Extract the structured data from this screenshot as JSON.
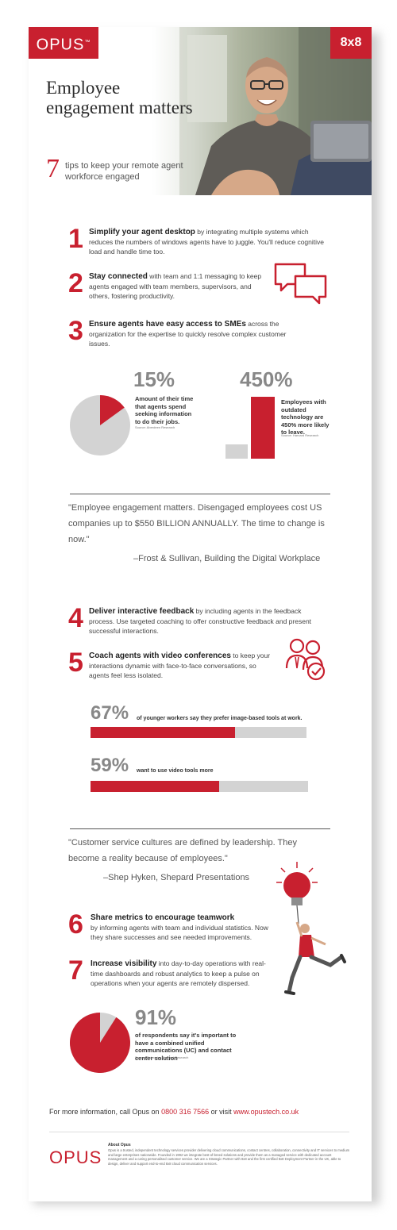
{
  "header": {
    "logo": "OPUS",
    "partner_logo": "8x8",
    "title": "Employee engagement matters",
    "tips_count": "7",
    "subtitle": "tips to keep your remote agent workforce engaged"
  },
  "tips": [
    {
      "num": "1",
      "bold": "Simplify your agent desktop",
      "text": " by integrating multiple systems which reduces the numbers of windows agents have to juggle. You'll reduce cognitive load and handle time too."
    },
    {
      "num": "2",
      "bold": "Stay connected",
      "text": " with team and 1:1 messaging to keep agents engaged with team members, supervisors, and others, fostering productivity."
    },
    {
      "num": "3",
      "bold": "Ensure agents have easy access to SMEs",
      "text": " across the organization for the expertise to quickly resolve complex customer issues."
    },
    {
      "num": "4",
      "bold": "Deliver interactive feedback",
      "text": " by including agents in the feedback process. Use targeted coaching to offer constructive feedback and present successful interactions."
    },
    {
      "num": "5",
      "bold": "Coach agents with video conferences",
      "text": " to keep your interactions dynamic with face-to-face conversations, so agents feel less isolated."
    },
    {
      "num": "6",
      "bold": "Share metrics to encourage teamwork",
      "text": "by informing agents with team and individual statistics. Now they share successes and see needed improvements."
    },
    {
      "num": "7",
      "bold": "Increase visibility",
      "text": " into day-to-day operations with real-time dashboards and robust analytics to keep a pulse on operations when your agents are remotely dispersed."
    }
  ],
  "stats": {
    "s15": {
      "value": "15%",
      "fraction": 0.15,
      "desc": "Amount of their time that agents spend seeking information to do their jobs.",
      "source": "Source: Aberdeen Research"
    },
    "s450": {
      "value": "450%",
      "desc": "Employees with outdated technology are 450% more likely to leave.",
      "source": "Source: Harvard Research"
    },
    "s67": {
      "value": "67%",
      "fraction": 0.67,
      "desc": "of younger workers say they prefer image-based tools at work."
    },
    "s59": {
      "value": "59%",
      "fraction": 0.59,
      "desc": "want to use video tools more"
    },
    "s91": {
      "value": "91%",
      "fraction": 0.91,
      "desc": "of respondents say it's important to have a combined unified communications (UC) and contact center solution",
      "source": "Source: Enterprise Connect Research"
    }
  },
  "quotes": [
    {
      "text": "\"Employee engagement matters. Disengaged employees cost US companies up to $550 BILLION ANNUALLY. The time to change is now.\"",
      "cite": "–Frost & Sullivan, Building the Digital Workplace"
    },
    {
      "text": "\"Customer service cultures are defined by leadership. They become a reality because of employees.\"",
      "cite": "–Shep Hyken, Shepard Presentations"
    }
  ],
  "contact": {
    "prefix": "For more information, call Opus on ",
    "phone": "0800 316 7566",
    "middle": " or visit ",
    "url": "www.opustech.co.uk"
  },
  "footer": {
    "logo": "OPUS",
    "about_title": "About Opus",
    "about_text": "Opus is a trusted, independent technology services provider delivering cloud communications, contact centres, collaboration, connectivity and IT services to medium and large enterprises nationwide. Founded in 1992 we integrate best-of-breed solutions and provide them as a managed service with dedicated account management and a caring personalised customer service. We are a Strategic Partner with 8x8 and the first certified 8x8 Deployment Partner in the UK, able to design, deliver and support end-to-end 8x8 cloud communication services."
  },
  "colors": {
    "accent": "#c8202f",
    "gray": "#d3d3d3"
  }
}
